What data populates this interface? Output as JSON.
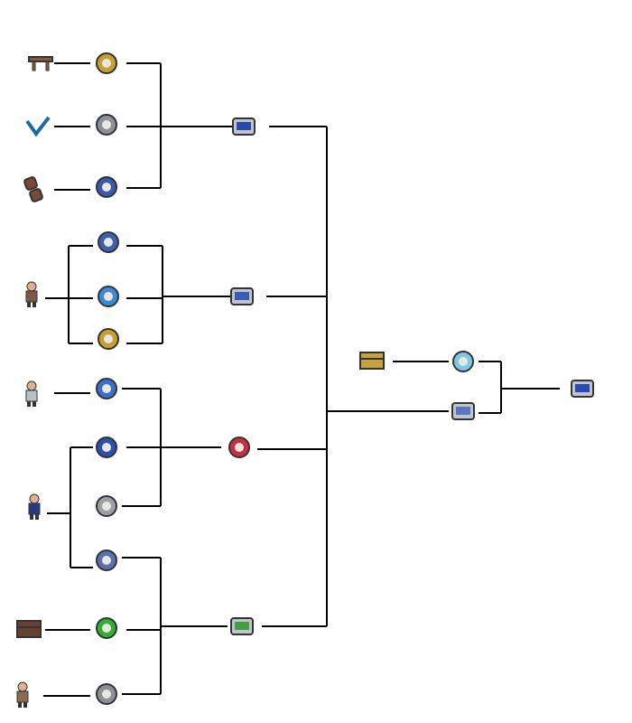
{
  "diagram": {
    "nodes": [
      {
        "id": "table",
        "icon": "table-icon",
        "color": "#8b5a3c"
      },
      {
        "id": "gold-watch",
        "icon": "gold-watch-icon",
        "color": "#c8a032"
      },
      {
        "id": "bat",
        "icon": "bat-icon",
        "color": "#1e6aa0"
      },
      {
        "id": "depth-meter",
        "icon": "depth-meter-icon",
        "color": "#8a8f98"
      },
      {
        "id": "shackle",
        "icon": "shackle-icon",
        "color": "#7a4a34"
      },
      {
        "id": "compass",
        "icon": "compass-icon",
        "color": "#3a58b0"
      },
      {
        "id": "gps",
        "icon": "gps-icon",
        "color": "#2a4aa8"
      },
      {
        "id": "angler",
        "icon": "angler-npc-icon",
        "color": "#7a5a44"
      },
      {
        "id": "weather-radio",
        "icon": "weather-radio-icon",
        "color": "#3a60b0"
      },
      {
        "id": "fishermans-guide",
        "icon": "fishermans-guide-icon",
        "color": "#3a8ad8"
      },
      {
        "id": "sextant",
        "icon": "sextant-icon",
        "color": "#c8a032"
      },
      {
        "id": "fish-finder",
        "icon": "fish-finder-icon",
        "color": "#3a5ab8"
      },
      {
        "id": "npc-a",
        "icon": "npc-icon",
        "color": "#b8c0c8"
      },
      {
        "id": "thermometer",
        "icon": "thermometer-icon",
        "color": "#3a70c8"
      },
      {
        "id": "metal-detector",
        "icon": "metal-detector-icon",
        "color": "#2a50b0"
      },
      {
        "id": "stopwatch",
        "icon": "stopwatch-icon",
        "color": "#9aa0a8"
      },
      {
        "id": "merchant",
        "icon": "merchant-npc-icon",
        "color": "#2a3a80"
      },
      {
        "id": "goblin-tech",
        "icon": "goblin-tech-icon",
        "color": "#c83040"
      },
      {
        "id": "radar",
        "icon": "radar-icon",
        "color": "#5a70b0"
      },
      {
        "id": "chest",
        "icon": "chest-icon",
        "color": "#6a4030"
      },
      {
        "id": "lifeform-analyzer",
        "icon": "lifeform-analyzer-icon",
        "color": "#30b030"
      },
      {
        "id": "zombie",
        "icon": "zombie-icon",
        "color": "#8a6a50"
      },
      {
        "id": "tally-counter",
        "icon": "tally-counter-icon",
        "color": "#8a9098"
      },
      {
        "id": "rek",
        "icon": "rek-icon",
        "color": "#40a040"
      },
      {
        "id": "gold-chest",
        "icon": "gold-chest-icon",
        "color": "#c8a040"
      },
      {
        "id": "magic-mirror",
        "icon": "magic-mirror-icon",
        "color": "#80c8e0"
      },
      {
        "id": "pda",
        "icon": "pda-icon",
        "color": "#5a78c0"
      },
      {
        "id": "cell-phone",
        "icon": "cell-phone-icon",
        "color": "#2a4ab8"
      }
    ],
    "line_color": "#000000"
  }
}
